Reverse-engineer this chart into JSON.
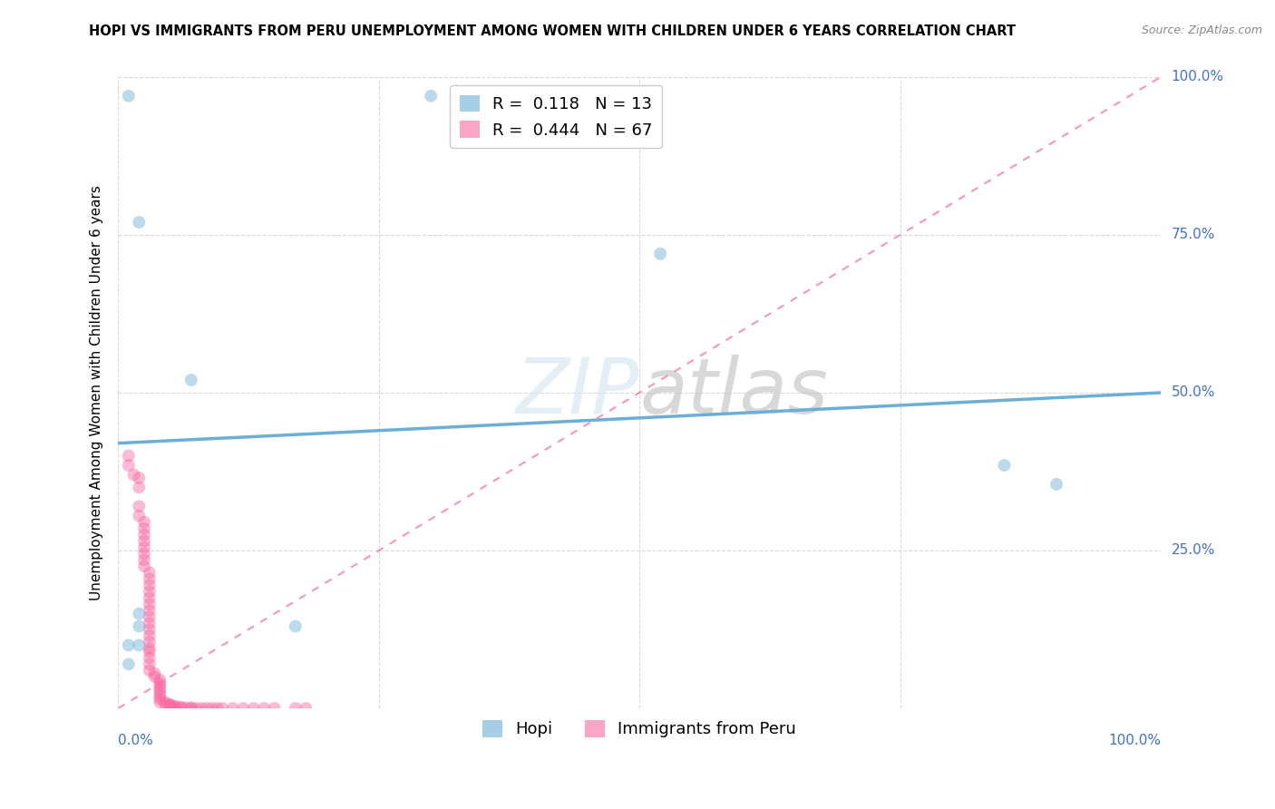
{
  "title": "HOPI VS IMMIGRANTS FROM PERU UNEMPLOYMENT AMONG WOMEN WITH CHILDREN UNDER 6 YEARS CORRELATION CHART",
  "source": "Source: ZipAtlas.com",
  "ylabel": "Unemployment Among Women with Children Under 6 years",
  "xlim": [
    0,
    1
  ],
  "ylim": [
    0,
    1
  ],
  "xticks": [
    0,
    0.25,
    0.5,
    0.75,
    1.0
  ],
  "yticks": [
    0,
    0.25,
    0.5,
    0.75,
    1.0
  ],
  "xticklabels_left": "0.0%",
  "xticklabels_right": "100.0%",
  "yticklabels": [
    "25.0%",
    "50.0%",
    "75.0%",
    "100.0%"
  ],
  "watermark_zip": "ZIP",
  "watermark_atlas": "atlas",
  "hopi_color": "#6baed6",
  "peru_color": "#f768a1",
  "hopi_R": 0.118,
  "hopi_N": 13,
  "peru_R": 0.444,
  "peru_N": 67,
  "hopi_points": [
    [
      0.01,
      0.97
    ],
    [
      0.02,
      0.77
    ],
    [
      0.07,
      0.52
    ],
    [
      0.3,
      0.97
    ],
    [
      0.52,
      0.72
    ],
    [
      0.02,
      0.15
    ],
    [
      0.02,
      0.13
    ],
    [
      0.17,
      0.13
    ],
    [
      0.85,
      0.385
    ],
    [
      0.9,
      0.355
    ],
    [
      0.02,
      0.1
    ],
    [
      0.01,
      0.1
    ],
    [
      0.01,
      0.07
    ]
  ],
  "peru_points": [
    [
      0.01,
      0.4
    ],
    [
      0.01,
      0.385
    ],
    [
      0.015,
      0.37
    ],
    [
      0.02,
      0.365
    ],
    [
      0.02,
      0.35
    ],
    [
      0.02,
      0.32
    ],
    [
      0.02,
      0.305
    ],
    [
      0.025,
      0.295
    ],
    [
      0.025,
      0.285
    ],
    [
      0.025,
      0.275
    ],
    [
      0.025,
      0.265
    ],
    [
      0.025,
      0.255
    ],
    [
      0.025,
      0.245
    ],
    [
      0.025,
      0.235
    ],
    [
      0.025,
      0.225
    ],
    [
      0.03,
      0.215
    ],
    [
      0.03,
      0.205
    ],
    [
      0.03,
      0.195
    ],
    [
      0.03,
      0.185
    ],
    [
      0.03,
      0.175
    ],
    [
      0.03,
      0.165
    ],
    [
      0.03,
      0.155
    ],
    [
      0.03,
      0.145
    ],
    [
      0.03,
      0.135
    ],
    [
      0.03,
      0.125
    ],
    [
      0.03,
      0.115
    ],
    [
      0.03,
      0.105
    ],
    [
      0.03,
      0.095
    ],
    [
      0.03,
      0.09
    ],
    [
      0.03,
      0.08
    ],
    [
      0.03,
      0.07
    ],
    [
      0.03,
      0.06
    ],
    [
      0.035,
      0.055
    ],
    [
      0.035,
      0.05
    ],
    [
      0.04,
      0.045
    ],
    [
      0.04,
      0.04
    ],
    [
      0.04,
      0.035
    ],
    [
      0.04,
      0.03
    ],
    [
      0.04,
      0.025
    ],
    [
      0.04,
      0.02
    ],
    [
      0.04,
      0.015
    ],
    [
      0.04,
      0.01
    ],
    [
      0.045,
      0.01
    ],
    [
      0.045,
      0.008
    ],
    [
      0.05,
      0.006
    ],
    [
      0.05,
      0.005
    ],
    [
      0.05,
      0.004
    ],
    [
      0.055,
      0.003
    ],
    [
      0.055,
      0.002
    ],
    [
      0.06,
      0.002
    ],
    [
      0.06,
      0.001
    ],
    [
      0.065,
      0.001
    ],
    [
      0.07,
      0.001
    ],
    [
      0.07,
      0.0
    ],
    [
      0.075,
      0.0
    ],
    [
      0.08,
      0.0
    ],
    [
      0.085,
      0.0
    ],
    [
      0.09,
      0.0
    ],
    [
      0.095,
      0.0
    ],
    [
      0.1,
      0.0
    ],
    [
      0.11,
      0.0
    ],
    [
      0.12,
      0.0
    ],
    [
      0.13,
      0.0
    ],
    [
      0.14,
      0.0
    ],
    [
      0.15,
      0.0
    ],
    [
      0.17,
      0.0
    ],
    [
      0.18,
      0.0
    ]
  ],
  "hopi_line_x": [
    0.0,
    1.0
  ],
  "hopi_line_y": [
    0.42,
    0.5
  ],
  "peru_line_x": [
    0.0,
    1.0
  ],
  "peru_line_y": [
    0.0,
    1.0
  ],
  "background_color": "#ffffff",
  "grid_color": "#d0d0d0",
  "title_fontsize": 10.5,
  "source_fontsize": 9,
  "axis_label_fontsize": 11,
  "tick_fontsize": 11,
  "legend_fontsize": 13,
  "marker_size": 100,
  "marker_alpha": 0.45
}
